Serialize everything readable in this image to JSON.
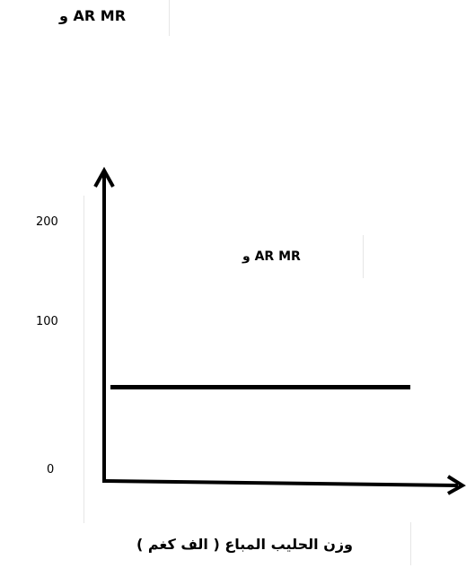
{
  "chart_data": {
    "type": "line",
    "ylabel": "و AR MR",
    "xlabel": "وزن الحليب المباع ( الف كغم )",
    "yticks": [
      "200",
      "100",
      "0"
    ],
    "ylim": [
      0,
      200
    ],
    "series": [
      {
        "name": "و AR MR",
        "y": 67
      }
    ],
    "line_color": "#000000"
  }
}
